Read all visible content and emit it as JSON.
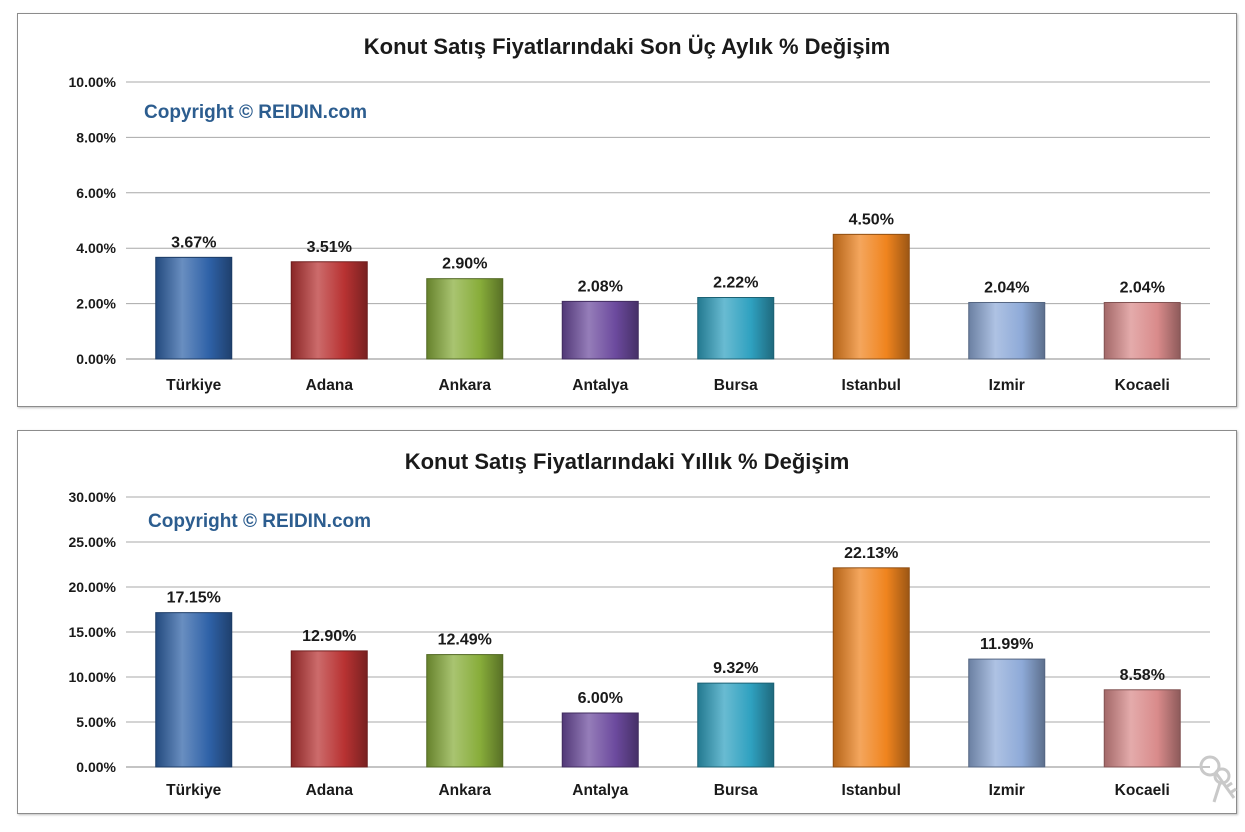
{
  "chart_data": [
    {
      "type": "bar",
      "title": "Konut Satış Fiyatlarındaki Son Üç Aylık % Değişim",
      "annotation": "Copyright © REIDIN.com",
      "categories": [
        "Türkiye",
        "Adana",
        "Ankara",
        "Antalya",
        "Bursa",
        "Istanbul",
        "Izmir",
        "Kocaeli"
      ],
      "values": [
        3.67,
        3.51,
        2.9,
        2.08,
        2.22,
        4.5,
        2.04,
        2.04
      ],
      "data_labels": [
        "3.67%",
        "3.51%",
        "2.90%",
        "2.08%",
        "2.22%",
        "4.50%",
        "2.04%",
        "2.04%"
      ],
      "ylim": [
        0,
        10
      ],
      "y_ticks": [
        0,
        2,
        4,
        6,
        8,
        10
      ],
      "y_tick_labels": [
        "0.00%",
        "2.00%",
        "4.00%",
        "6.00%",
        "8.00%",
        "10.00%"
      ],
      "xlabel": "",
      "ylabel": "",
      "grid": true,
      "legend": "none"
    },
    {
      "type": "bar",
      "title": "Konut Satış Fiyatlarındaki Yıllık % Değişim",
      "annotation": "Copyright © REIDIN.com",
      "categories": [
        "Türkiye",
        "Adana",
        "Ankara",
        "Antalya",
        "Bursa",
        "Istanbul",
        "Izmir",
        "Kocaeli"
      ],
      "values": [
        17.15,
        12.9,
        12.49,
        6.0,
        9.32,
        22.13,
        11.99,
        8.58
      ],
      "data_labels": [
        "17.15%",
        "12.90%",
        "12.49%",
        "6.00%",
        "9.32%",
        "22.13%",
        "11.99%",
        "8.58%"
      ],
      "ylim": [
        0,
        30
      ],
      "y_ticks": [
        0,
        5,
        10,
        15,
        20,
        25,
        30
      ],
      "y_tick_labels": [
        "0.00%",
        "5.00%",
        "10.00%",
        "15.00%",
        "20.00%",
        "25.00%",
        "30.00%"
      ],
      "xlabel": "",
      "ylabel": "",
      "grid": true,
      "legend": "none"
    }
  ],
  "bar_colors": [
    "#2f62a8",
    "#b83232",
    "#88ad3a",
    "#6c4a9e",
    "#2fa1c0",
    "#f0841e",
    "#8eaad8",
    "#d98b8b"
  ],
  "watermark_icon": "keys-icon"
}
